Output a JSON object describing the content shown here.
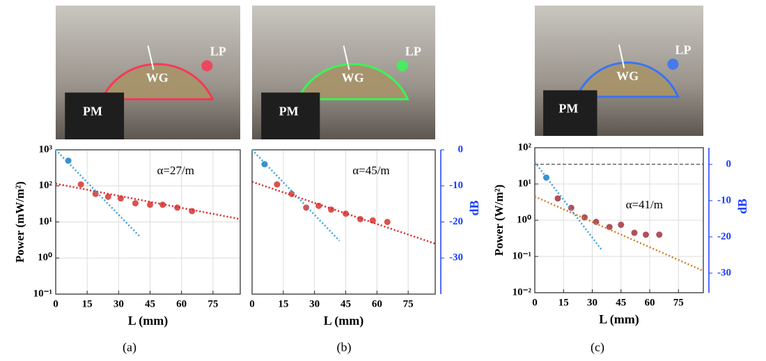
{
  "chart_data": [
    {
      "type": "scatter",
      "panel_label": "(a)",
      "photo_labels": [
        "WG",
        "LP",
        "PM"
      ],
      "photo_glow": "#ff3050",
      "annotation": "α=27/m",
      "xlabel": "L (mm)",
      "ylabel": "Power (mW/m²)",
      "xlim": [
        0,
        88
      ],
      "xticks": [
        0,
        15,
        30,
        45,
        60,
        75
      ],
      "ylim": [
        0.1,
        1000
      ],
      "log_y": true,
      "grid": true,
      "yticks": [
        {
          "value": 1000,
          "label": "10³"
        },
        {
          "value": 100,
          "label": "10²"
        },
        {
          "value": 10,
          "label": "10¹"
        },
        {
          "value": 1,
          "label": "10⁰"
        },
        {
          "value": 0.1,
          "label": "10⁻¹"
        }
      ],
      "ref_line": 1000,
      "series": [
        {
          "style": "points",
          "color": "#d9534f",
          "x": [
            12,
            19,
            25,
            31,
            38,
            45,
            51,
            58,
            65
          ],
          "values": [
            110,
            60,
            50,
            45,
            33,
            30,
            30,
            25,
            20
          ]
        },
        {
          "style": "points",
          "color": "#3a8fd0",
          "x": [
            6
          ],
          "values": [
            500
          ]
        },
        {
          "style": "dotted-line",
          "color": "#e02020",
          "x": [
            0,
            88
          ],
          "values": [
            115,
            12
          ]
        },
        {
          "style": "dotted-line",
          "color": "#3aa0d8",
          "x": [
            0,
            40
          ],
          "values": [
            1000,
            4
          ]
        }
      ]
    },
    {
      "type": "scatter",
      "panel_label": "(b)",
      "photo_labels": [
        "WG",
        "LP",
        "PM"
      ],
      "photo_glow": "#30ff50",
      "annotation": "α=45/m",
      "xlabel": "L (mm)",
      "y2label": "dB",
      "xlim": [
        0,
        88
      ],
      "xticks": [
        0,
        15,
        30,
        45,
        60,
        75
      ],
      "ylim": [
        0.1,
        1000
      ],
      "log_y": true,
      "grid": true,
      "y2lim": [
        -40,
        0
      ],
      "y2ticks": [
        0,
        -10,
        -20,
        -30
      ],
      "ref_line": 1000,
      "series": [
        {
          "style": "points",
          "color": "#d9534f",
          "x": [
            12,
            19,
            26,
            32,
            38,
            45,
            52,
            58,
            65
          ],
          "values": [
            110,
            60,
            25,
            28,
            22,
            17,
            12,
            11,
            10
          ]
        },
        {
          "style": "points",
          "color": "#3a8fd0",
          "x": [
            6
          ],
          "values": [
            400
          ]
        },
        {
          "style": "dotted-line",
          "color": "#e02020",
          "x": [
            0,
            88
          ],
          "values": [
            130,
            2.5
          ]
        },
        {
          "style": "dotted-line",
          "color": "#3aa0d8",
          "x": [
            0,
            42
          ],
          "values": [
            1000,
            3
          ]
        }
      ]
    },
    {
      "type": "scatter",
      "panel_label": "(c)",
      "photo_labels": [
        "WG",
        "LP",
        "PM"
      ],
      "photo_glow": "#3070ff",
      "annotation": "α=41/m",
      "xlabel": "L (mm)",
      "ylabel": "Power (W/m²)",
      "y2label": "dB",
      "xlim": [
        0,
        88
      ],
      "xticks": [
        0,
        15,
        30,
        45,
        60,
        75
      ],
      "ylim": [
        0.01,
        100
      ],
      "log_y": true,
      "grid": true,
      "yticks": [
        {
          "value": 100,
          "label": "10²"
        },
        {
          "value": 10,
          "label": "10¹"
        },
        {
          "value": 1,
          "label": "10⁰"
        },
        {
          "value": 0.1,
          "label": "10⁻¹"
        },
        {
          "value": 0.01,
          "label": "10⁻²"
        }
      ],
      "y2lim": [
        -35.4,
        4.6
      ],
      "y2ticks": [
        0,
        -10,
        -20,
        -30
      ],
      "ref_line": 35,
      "series": [
        {
          "style": "points",
          "color": "#b0505a",
          "x": [
            12,
            19,
            26,
            32,
            39,
            45,
            52,
            58,
            65
          ],
          "values": [
            4,
            2.2,
            1.2,
            0.9,
            0.65,
            0.75,
            0.45,
            0.4,
            0.4
          ]
        },
        {
          "style": "points",
          "color": "#3a8fd0",
          "x": [
            6
          ],
          "values": [
            15
          ]
        },
        {
          "style": "dotted-line",
          "color": "#d07a20",
          "x": [
            0,
            88
          ],
          "values": [
            4.5,
            0.04
          ]
        },
        {
          "style": "dotted-line",
          "color": "#3aa0d8",
          "x": [
            0,
            35
          ],
          "values": [
            40,
            0.15
          ]
        }
      ]
    }
  ]
}
